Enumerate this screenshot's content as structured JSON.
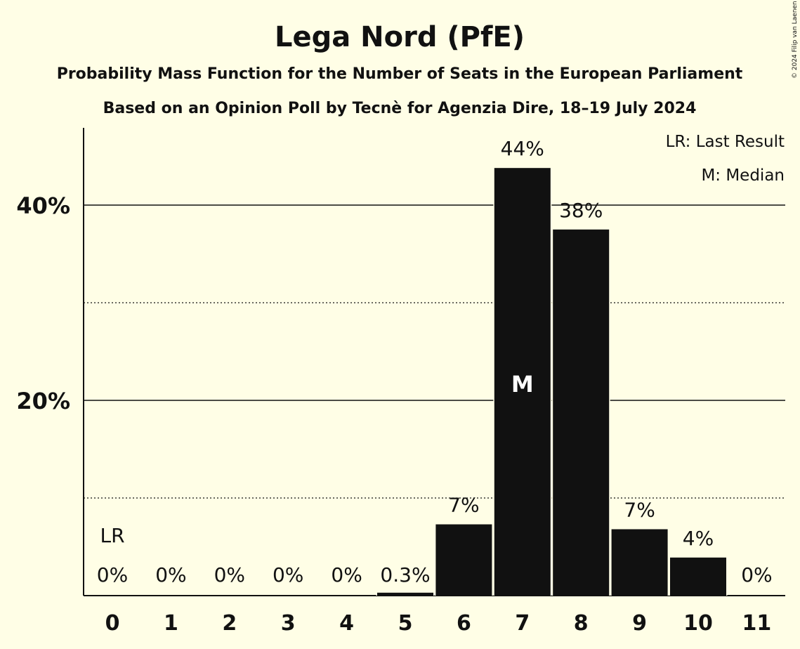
{
  "copyright": "© 2024 Filip van Laenen",
  "chart_data": {
    "type": "bar",
    "title": "Lega Nord (PfE)",
    "subtitle": "Probability Mass Function for the Number of Seats in the European Parliament",
    "subtitle2": "Based on an Opinion Poll by Tecnè for Agenzia Dire, 18–19 July 2024",
    "xlabel": "",
    "ylabel": "",
    "categories": [
      "0",
      "1",
      "2",
      "3",
      "4",
      "5",
      "6",
      "7",
      "8",
      "9",
      "10",
      "11"
    ],
    "values": [
      0,
      0,
      0,
      0,
      0,
      0.3,
      7.3,
      43.8,
      37.5,
      6.8,
      3.9,
      0
    ],
    "value_labels": [
      "0%",
      "0%",
      "0%",
      "0%",
      "0%",
      "0.3%",
      "7%",
      "44%",
      "38%",
      "7%",
      "4%",
      "0%"
    ],
    "ylim": [
      0,
      47.5
    ],
    "y_ticks": [
      {
        "value": 20,
        "label": "20%"
      },
      {
        "value": 40,
        "label": "40%"
      }
    ],
    "minor_gridlines": [
      10,
      30
    ],
    "last_result": {
      "category": "0",
      "label": "LR"
    },
    "median": {
      "category": "7",
      "label": "M"
    },
    "legend": {
      "position": "top-right",
      "entries": [
        "LR: Last Result",
        "M: Median"
      ]
    },
    "bar_color": "#111111",
    "background": "#FFFEE6"
  }
}
